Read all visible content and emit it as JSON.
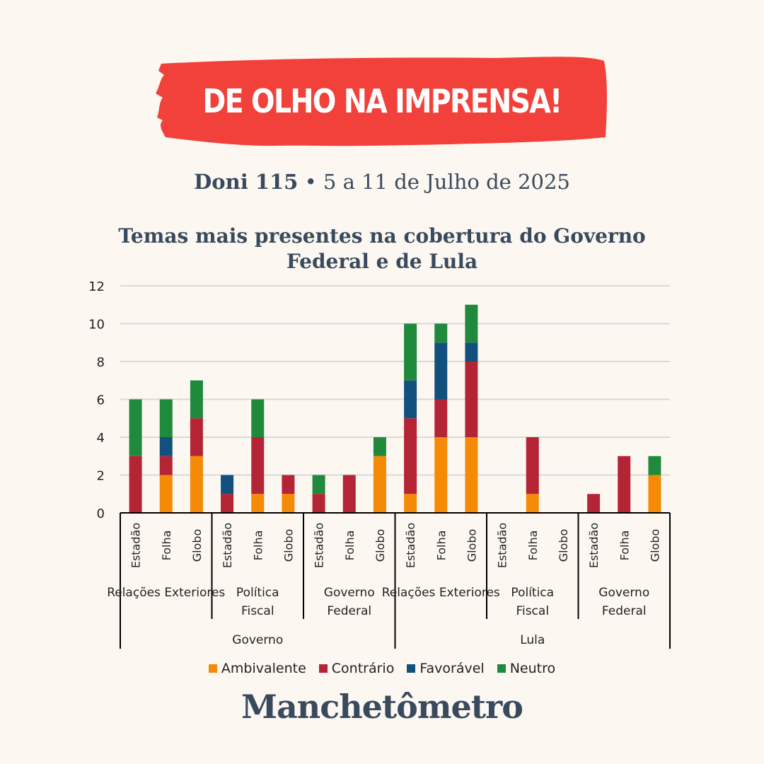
{
  "banner": {
    "title": "DE OLHO NA IMPRENSA!",
    "color": "#f1413a"
  },
  "issue": {
    "edition": "Doni 115",
    "separator": "•",
    "period": "5 a 11 de Julho de 2025"
  },
  "brand": "Manchetômetro",
  "chart_data": {
    "type": "bar",
    "stacked": true,
    "title": "Temas mais presentes na cobertura do Governo Federal e de Lula",
    "xlabel": "",
    "ylabel": "",
    "ylim": [
      0,
      12
    ],
    "yticks": [
      0,
      2,
      4,
      6,
      8,
      10,
      12
    ],
    "grid": true,
    "legend_position": "bottom",
    "categories": [
      "Estadão",
      "Folha",
      "Globo",
      "Estadão",
      "Folha",
      "Globo",
      "Estadão",
      "Folha",
      "Globo",
      "Estadão",
      "Folha",
      "Globo",
      "Estadão",
      "Folha",
      "Globo",
      "Estadão",
      "Folha",
      "Globo"
    ],
    "group_labels": [
      "Relações Exteriores",
      "Política Fiscal",
      "Governo Federal",
      "Relações Exteriores",
      "Política Fiscal",
      "Governo Federal"
    ],
    "super_group_labels": [
      "Governo",
      "Lula"
    ],
    "series": [
      {
        "name": "Ambivalente",
        "color": "#f58a07",
        "values": [
          0,
          2,
          3,
          0,
          1,
          1,
          0,
          0,
          3,
          1,
          4,
          4,
          0,
          1,
          0,
          0,
          0,
          2
        ]
      },
      {
        "name": "Contrário",
        "color": "#b52435",
        "values": [
          3,
          1,
          2,
          1,
          3,
          1,
          1,
          2,
          0,
          4,
          2,
          4,
          0,
          3,
          0,
          1,
          3,
          0
        ]
      },
      {
        "name": "Favorável",
        "color": "#12507e",
        "values": [
          0,
          1,
          0,
          1,
          0,
          0,
          0,
          0,
          0,
          2,
          3,
          1,
          0,
          0,
          0,
          0,
          0,
          0
        ]
      },
      {
        "name": "Neutro",
        "color": "#1f8a3c",
        "values": [
          3,
          2,
          2,
          0,
          2,
          0,
          1,
          0,
          1,
          3,
          1,
          2,
          0,
          0,
          0,
          0,
          0,
          1
        ]
      }
    ]
  }
}
